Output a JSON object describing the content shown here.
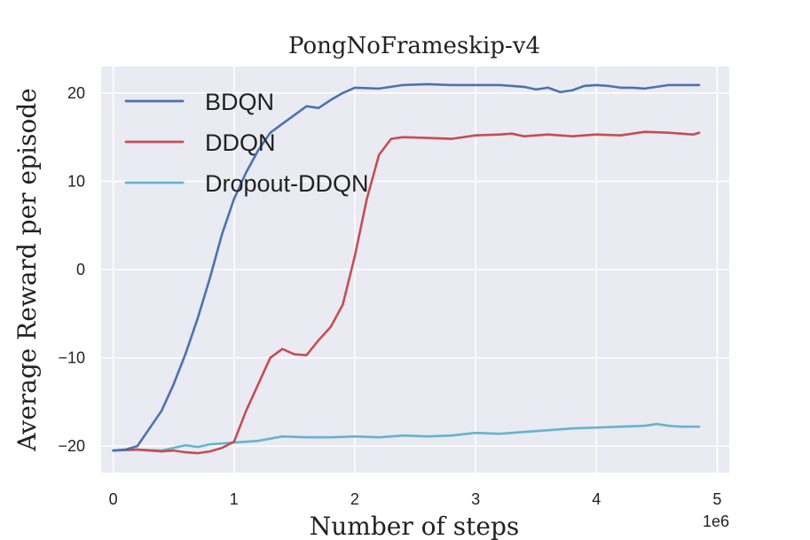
{
  "chart_data": {
    "type": "line",
    "title": "PongNoFrameskip-v4",
    "xlabel": "Number of steps",
    "ylabel": "Average Reward per episode",
    "x_offset_label": "1e6",
    "xlim": [
      -0.1,
      5.1
    ],
    "ylim": [
      -23,
      23
    ],
    "x_ticks": [
      0,
      1,
      2,
      3,
      4,
      5
    ],
    "x_tick_labels": [
      "0",
      "1",
      "2",
      "3",
      "4",
      "5"
    ],
    "y_ticks": [
      -20,
      -10,
      0,
      10,
      20
    ],
    "y_tick_labels": [
      "−20",
      "−10",
      "0",
      "10",
      "20"
    ],
    "grid": true,
    "legend_position": "top-left",
    "series": [
      {
        "name": "BDQN",
        "color": "#4c72b0",
        "x": [
          0,
          0.1,
          0.2,
          0.3,
          0.4,
          0.5,
          0.6,
          0.7,
          0.8,
          0.9,
          1.0,
          1.1,
          1.2,
          1.3,
          1.4,
          1.5,
          1.6,
          1.7,
          1.8,
          1.9,
          2.0,
          2.2,
          2.4,
          2.6,
          2.8,
          3.0,
          3.2,
          3.4,
          3.5,
          3.6,
          3.7,
          3.8,
          3.9,
          4.0,
          4.1,
          4.2,
          4.3,
          4.4,
          4.5,
          4.6,
          4.7,
          4.85
        ],
        "y": [
          -20.5,
          -20.4,
          -20.0,
          -18.0,
          -16.0,
          -13.0,
          -9.5,
          -5.5,
          -1.0,
          4.0,
          8.0,
          11.0,
          13.5,
          15.5,
          16.5,
          17.5,
          18.5,
          18.3,
          19.2,
          20.0,
          20.6,
          20.5,
          20.9,
          21.0,
          20.9,
          20.9,
          20.9,
          20.7,
          20.4,
          20.6,
          20.1,
          20.3,
          20.8,
          20.9,
          20.8,
          20.6,
          20.6,
          20.5,
          20.7,
          20.9,
          20.9,
          20.9
        ]
      },
      {
        "name": "DDQN",
        "color": "#c44e52",
        "x": [
          0,
          0.2,
          0.4,
          0.5,
          0.6,
          0.7,
          0.8,
          0.9,
          1.0,
          1.1,
          1.2,
          1.3,
          1.4,
          1.5,
          1.6,
          1.7,
          1.8,
          1.9,
          2.0,
          2.1,
          2.2,
          2.3,
          2.4,
          2.6,
          2.8,
          3.0,
          3.2,
          3.3,
          3.4,
          3.6,
          3.8,
          4.0,
          4.2,
          4.4,
          4.6,
          4.8,
          4.85
        ],
        "y": [
          -20.5,
          -20.4,
          -20.6,
          -20.5,
          -20.7,
          -20.8,
          -20.6,
          -20.2,
          -19.5,
          -16.0,
          -13.0,
          -10.0,
          -9.0,
          -9.6,
          -9.7,
          -8.0,
          -6.5,
          -4.0,
          1.5,
          8.0,
          13.0,
          14.8,
          15.0,
          14.9,
          14.8,
          15.2,
          15.3,
          15.4,
          15.1,
          15.3,
          15.1,
          15.3,
          15.2,
          15.6,
          15.5,
          15.3,
          15.5
        ]
      },
      {
        "name": "Dropout-DDQN",
        "color": "#64b5cd",
        "x": [
          0,
          0.2,
          0.4,
          0.5,
          0.6,
          0.7,
          0.8,
          1.0,
          1.2,
          1.4,
          1.6,
          1.8,
          2.0,
          2.2,
          2.4,
          2.6,
          2.8,
          3.0,
          3.2,
          3.4,
          3.6,
          3.8,
          4.0,
          4.2,
          4.4,
          4.5,
          4.6,
          4.7,
          4.85
        ],
        "y": [
          -20.5,
          -20.4,
          -20.5,
          -20.2,
          -19.9,
          -20.1,
          -19.8,
          -19.6,
          -19.4,
          -18.9,
          -19.0,
          -19.0,
          -18.9,
          -19.0,
          -18.8,
          -18.9,
          -18.8,
          -18.5,
          -18.6,
          -18.4,
          -18.2,
          -18.0,
          -17.9,
          -17.8,
          -17.7,
          -17.5,
          -17.7,
          -17.8,
          -17.8
        ]
      }
    ]
  }
}
